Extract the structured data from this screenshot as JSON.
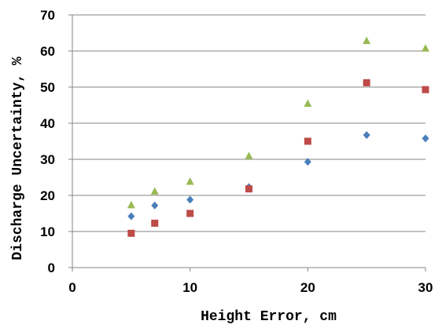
{
  "chart_data": {
    "type": "scatter",
    "xlabel": "Height Error, cm",
    "ylabel": "Discharge Uncertainty, %",
    "xlim": [
      0,
      30
    ],
    "ylim": [
      0,
      70
    ],
    "xticks": [
      0,
      10,
      20,
      30
    ],
    "yticks": [
      0,
      10,
      20,
      30,
      40,
      50,
      60,
      70
    ],
    "grid": "horizontal",
    "legend": "none",
    "series": [
      {
        "marker": "diamond",
        "color": "#4a7ebb",
        "x": [
          5,
          7,
          10,
          15,
          20,
          25,
          30
        ],
        "y": [
          14.2,
          17.2,
          18.8,
          22.3,
          29.3,
          36.7,
          35.8
        ]
      },
      {
        "marker": "square",
        "color": "#be4b48",
        "x": [
          5,
          7,
          10,
          15,
          20,
          25,
          30
        ],
        "y": [
          9.5,
          12.3,
          15.0,
          21.8,
          35.0,
          51.2,
          49.3
        ]
      },
      {
        "marker": "triangle",
        "color": "#98b954",
        "x": [
          5,
          7,
          10,
          15,
          20,
          25,
          30
        ],
        "y": [
          17.3,
          21.1,
          23.8,
          30.9,
          45.4,
          62.8,
          60.7
        ]
      }
    ]
  }
}
